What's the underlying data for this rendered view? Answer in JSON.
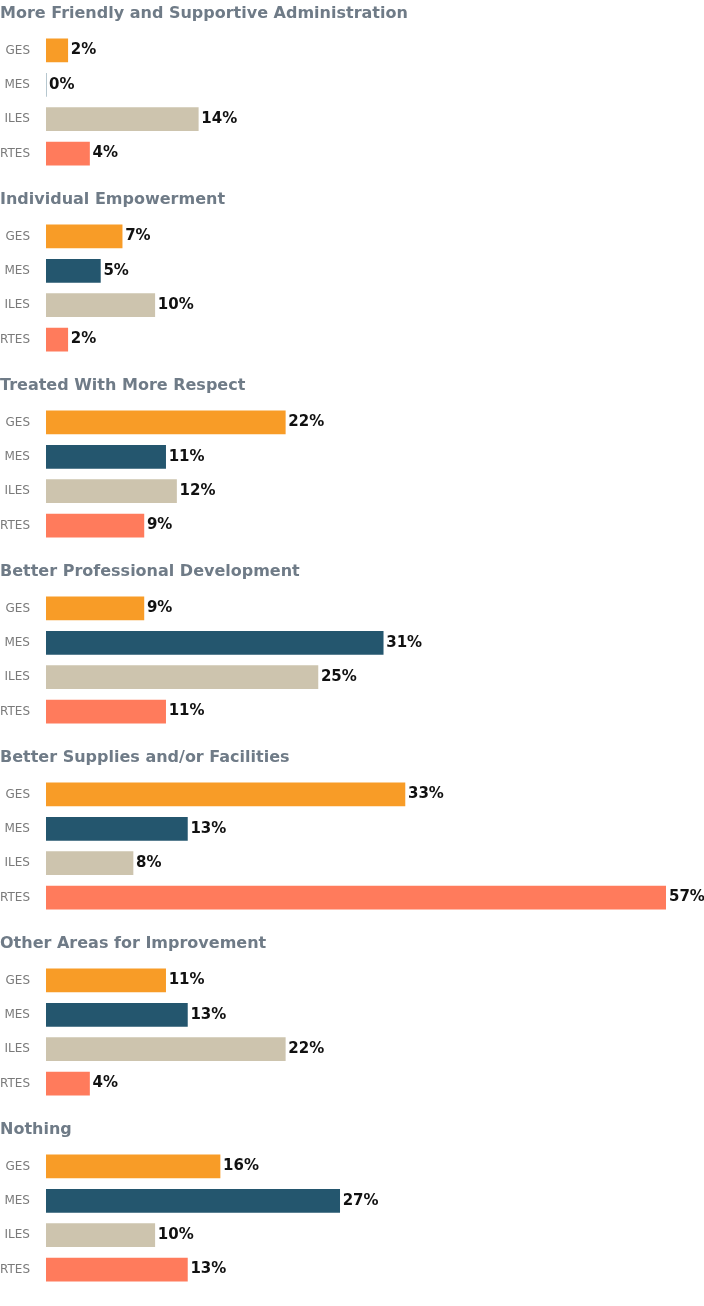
{
  "chart_data": [
    {
      "type": "bar",
      "orientation": "horizontal",
      "title": "More Friendly and Supportive Administration",
      "categories": [
        "GES",
        "MES",
        "ILES",
        "RTES"
      ],
      "values": [
        2,
        0,
        14,
        4
      ],
      "value_labels": [
        "2%",
        "0%",
        "14%",
        "4%"
      ],
      "colors": [
        "#f89c27",
        "#24566e",
        "#cdc4ae",
        "#ff7b5c"
      ]
    },
    {
      "type": "bar",
      "orientation": "horizontal",
      "title": "Individual Empowerment",
      "categories": [
        "GES",
        "MES",
        "ILES",
        "RTES"
      ],
      "values": [
        7,
        5,
        10,
        2
      ],
      "value_labels": [
        "7%",
        "5%",
        "10%",
        "2%"
      ],
      "colors": [
        "#f89c27",
        "#24566e",
        "#cdc4ae",
        "#ff7b5c"
      ]
    },
    {
      "type": "bar",
      "orientation": "horizontal",
      "title": "Treated With More Respect",
      "categories": [
        "GES",
        "MES",
        "ILES",
        "RTES"
      ],
      "values": [
        22,
        11,
        12,
        9
      ],
      "value_labels": [
        "22%",
        "11%",
        "12%",
        "9%"
      ],
      "colors": [
        "#f89c27",
        "#24566e",
        "#cdc4ae",
        "#ff7b5c"
      ]
    },
    {
      "type": "bar",
      "orientation": "horizontal",
      "title": "Better Professional Development",
      "categories": [
        "GES",
        "MES",
        "ILES",
        "RTES"
      ],
      "values": [
        9,
        31,
        25,
        11
      ],
      "value_labels": [
        "9%",
        "31%",
        "25%",
        "11%"
      ],
      "colors": [
        "#f89c27",
        "#24566e",
        "#cdc4ae",
        "#ff7b5c"
      ]
    },
    {
      "type": "bar",
      "orientation": "horizontal",
      "title": "Better Supplies and/or Facilities",
      "categories": [
        "GES",
        "MES",
        "ILES",
        "RTES"
      ],
      "values": [
        33,
        13,
        8,
        57
      ],
      "value_labels": [
        "33%",
        "13%",
        "8%",
        "57%"
      ],
      "colors": [
        "#f89c27",
        "#24566e",
        "#cdc4ae",
        "#ff7b5c"
      ]
    },
    {
      "type": "bar",
      "orientation": "horizontal",
      "title": "Other Areas for Improvement",
      "categories": [
        "GES",
        "MES",
        "ILES",
        "RTES"
      ],
      "values": [
        11,
        13,
        22,
        4
      ],
      "value_labels": [
        "11%",
        "13%",
        "22%",
        "4%"
      ],
      "colors": [
        "#f89c27",
        "#24566e",
        "#cdc4ae",
        "#ff7b5c"
      ]
    },
    {
      "type": "bar",
      "orientation": "horizontal",
      "title": "Nothing",
      "categories": [
        "GES",
        "MES",
        "ILES",
        "RTES"
      ],
      "values": [
        16,
        27,
        10,
        13
      ],
      "value_labels": [
        "16%",
        "27%",
        "10%",
        "13%"
      ],
      "colors": [
        "#f89c27",
        "#24566e",
        "#cdc4ae",
        "#ff7b5c"
      ]
    }
  ]
}
